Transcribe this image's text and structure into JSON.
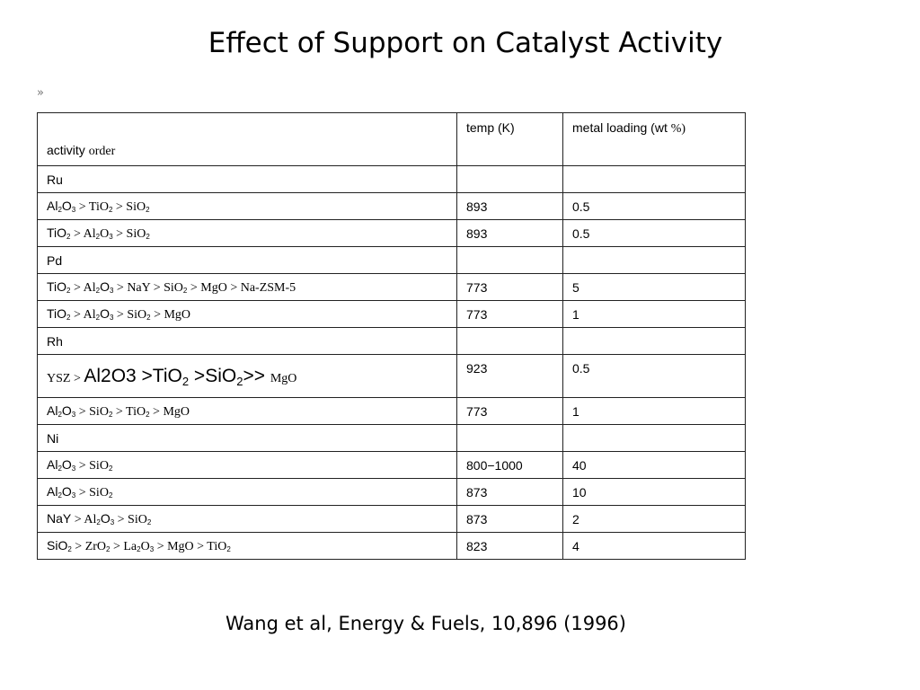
{
  "title": "Effect of Support on Catalyst Activity",
  "bullet": "»",
  "table": {
    "headers": {
      "col1_a": "activity ",
      "col1_b": "order",
      "col2": "temp (K)",
      "col3_a": "metal loading (wt ",
      "col3_b": "%)"
    },
    "rows": [
      {
        "metal": "Ru"
      },
      {
        "parts": [
          [
            "s",
            "Al"
          ],
          [
            "sub",
            "2"
          ],
          [
            "s",
            "O"
          ],
          [
            "sub",
            "3"
          ],
          [
            "r",
            " > TiO"
          ],
          [
            "sub",
            "2"
          ],
          [
            "r",
            " > SiO"
          ],
          [
            "sub",
            "2"
          ]
        ],
        "temp": "893",
        "loading": "0.5"
      },
      {
        "parts": [
          [
            "s",
            "TiO"
          ],
          [
            "sub",
            "2"
          ],
          [
            "r",
            " > Al"
          ],
          [
            "sub",
            "2"
          ],
          [
            "r",
            "O"
          ],
          [
            "sub",
            "3"
          ],
          [
            "r",
            " > SiO"
          ],
          [
            "sub",
            "2"
          ]
        ],
        "temp": "893",
        "loading": "0.5"
      },
      {
        "metal": "Pd"
      },
      {
        "parts": [
          [
            "s",
            "TiO"
          ],
          [
            "sub",
            "2"
          ],
          [
            "r",
            " > Al"
          ],
          [
            "sub",
            "2"
          ],
          [
            "s",
            "O"
          ],
          [
            "sub",
            "3"
          ],
          [
            "r",
            " > NaY > SiO"
          ],
          [
            "sub",
            "2"
          ],
          [
            "r",
            " > MgO > Na-ZSM-5"
          ]
        ],
        "temp": "773",
        "loading": "5"
      },
      {
        "parts": [
          [
            "s",
            "TiO"
          ],
          [
            "sub",
            "2"
          ],
          [
            "r",
            " > Al"
          ],
          [
            "sub",
            "2"
          ],
          [
            "s",
            "O"
          ],
          [
            "sub",
            "3"
          ],
          [
            "r",
            " > SiO"
          ],
          [
            "sub",
            "2"
          ],
          [
            "r",
            " > MgO"
          ]
        ],
        "temp": "773",
        "loading": "1"
      },
      {
        "metal": "Rh"
      },
      {
        "big": true,
        "parts": [
          [
            "rs",
            " YSZ > "
          ],
          [
            "bs",
            "Al2O3 >TiO"
          ],
          [
            "bsub",
            "2"
          ],
          [
            "bs",
            " >SiO"
          ],
          [
            "bsub",
            "2"
          ],
          [
            "bs",
            ">> "
          ],
          [
            "rs",
            " MgO"
          ]
        ],
        "temp": "923",
        "loading": "0.5"
      },
      {
        "parts": [
          [
            "s",
            "Al"
          ],
          [
            "sub",
            "2"
          ],
          [
            "s",
            "O"
          ],
          [
            "sub",
            "3"
          ],
          [
            "r",
            " > SiO"
          ],
          [
            "sub",
            "2"
          ],
          [
            "r",
            " > TiO"
          ],
          [
            "sub",
            "2"
          ],
          [
            "r",
            " > MgO"
          ]
        ],
        "temp": "773",
        "loading": "1"
      },
      {
        "metal": "Ni"
      },
      {
        "parts": [
          [
            "s",
            "Al"
          ],
          [
            "sub",
            "2"
          ],
          [
            "s",
            "O"
          ],
          [
            "sub",
            "3"
          ],
          [
            "r",
            " > SiO"
          ],
          [
            "sub",
            "2"
          ]
        ],
        "temp": "800−1000",
        "loading": "40"
      },
      {
        "parts": [
          [
            "s",
            "Al"
          ],
          [
            "sub",
            "2"
          ],
          [
            "s",
            "O"
          ],
          [
            "sub",
            "3"
          ],
          [
            "r",
            " > SiO"
          ],
          [
            "sub",
            "2"
          ]
        ],
        "temp": "873",
        "loading": "10"
      },
      {
        "parts": [
          [
            "s",
            "NaY"
          ],
          [
            "r",
            " > Al"
          ],
          [
            "sub",
            "2"
          ],
          [
            "s",
            "O"
          ],
          [
            "sub",
            "3"
          ],
          [
            "r",
            " > SiO"
          ],
          [
            "sub",
            "2"
          ]
        ],
        "temp": "873",
        "loading": "2"
      },
      {
        "parts": [
          [
            "s",
            "SiO"
          ],
          [
            "sub",
            "2"
          ],
          [
            "r",
            " > ZrO"
          ],
          [
            "sub",
            "2"
          ],
          [
            "r",
            " > La"
          ],
          [
            "sub",
            "2"
          ],
          [
            "r",
            "O"
          ],
          [
            "sub",
            "3"
          ],
          [
            "r",
            " > MgO > TiO"
          ],
          [
            "sub",
            "2"
          ]
        ],
        "temp": "823",
        "loading": "4"
      }
    ]
  },
  "citation": "Wang et al, Energy & Fuels, 10,896 (1996)"
}
